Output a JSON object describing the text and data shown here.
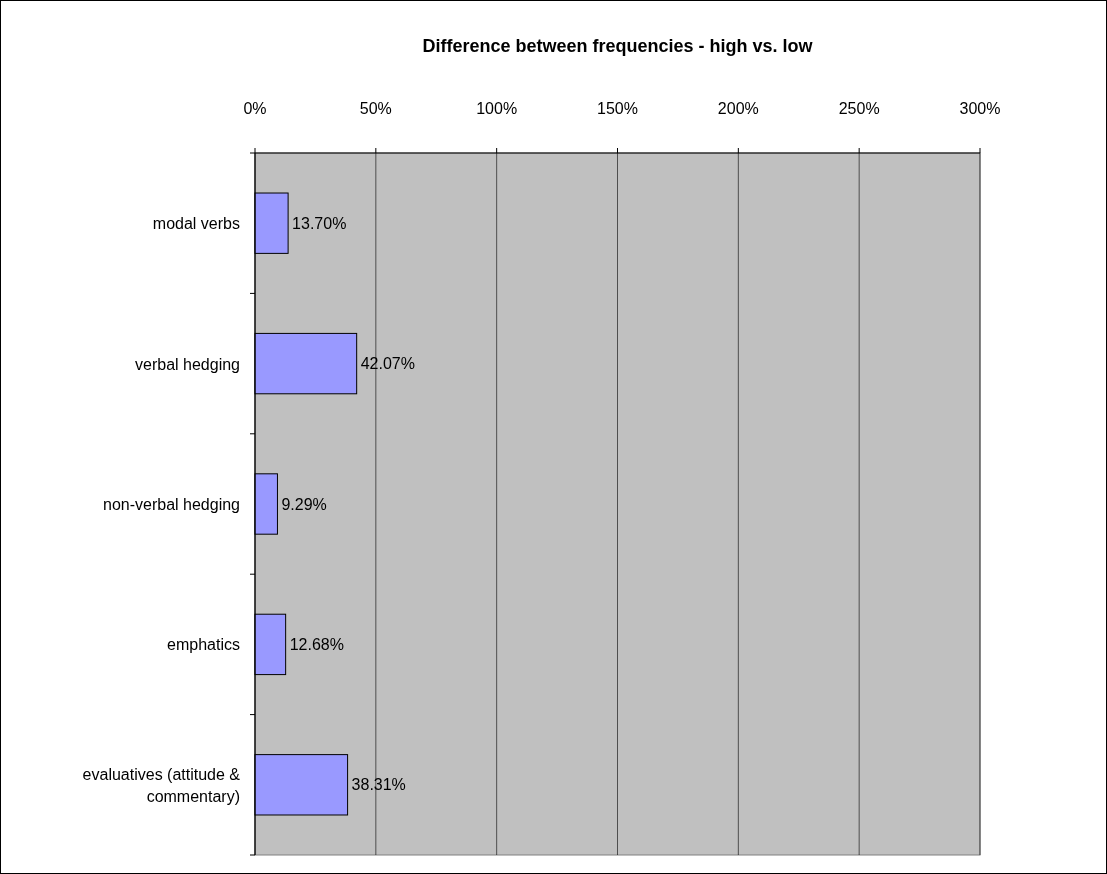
{
  "chart_data": {
    "type": "bar",
    "title": "Difference between frequencies - high vs. low",
    "orientation": "horizontal",
    "categories": [
      "modal verbs",
      "verbal hedging",
      "non-verbal hedging",
      "emphatics",
      "evaluatives (attitude & commentary)"
    ],
    "values": [
      13.7,
      42.07,
      9.29,
      12.68,
      38.31
    ],
    "value_labels": [
      "13.70%",
      "42.07%",
      "9.29%",
      "12.68%",
      "38.31%"
    ],
    "color": "#9999ff",
    "xlim": [
      0,
      300
    ],
    "xticks": [
      {
        "value": 0,
        "label": "0%"
      },
      {
        "value": 50,
        "label": "50%"
      },
      {
        "value": 100,
        "label": "100%"
      },
      {
        "value": 150,
        "label": "150%"
      },
      {
        "value": 200,
        "label": "200%"
      },
      {
        "value": 250,
        "label": "250%"
      },
      {
        "value": 300,
        "label": "300%"
      }
    ],
    "grid": "x"
  }
}
